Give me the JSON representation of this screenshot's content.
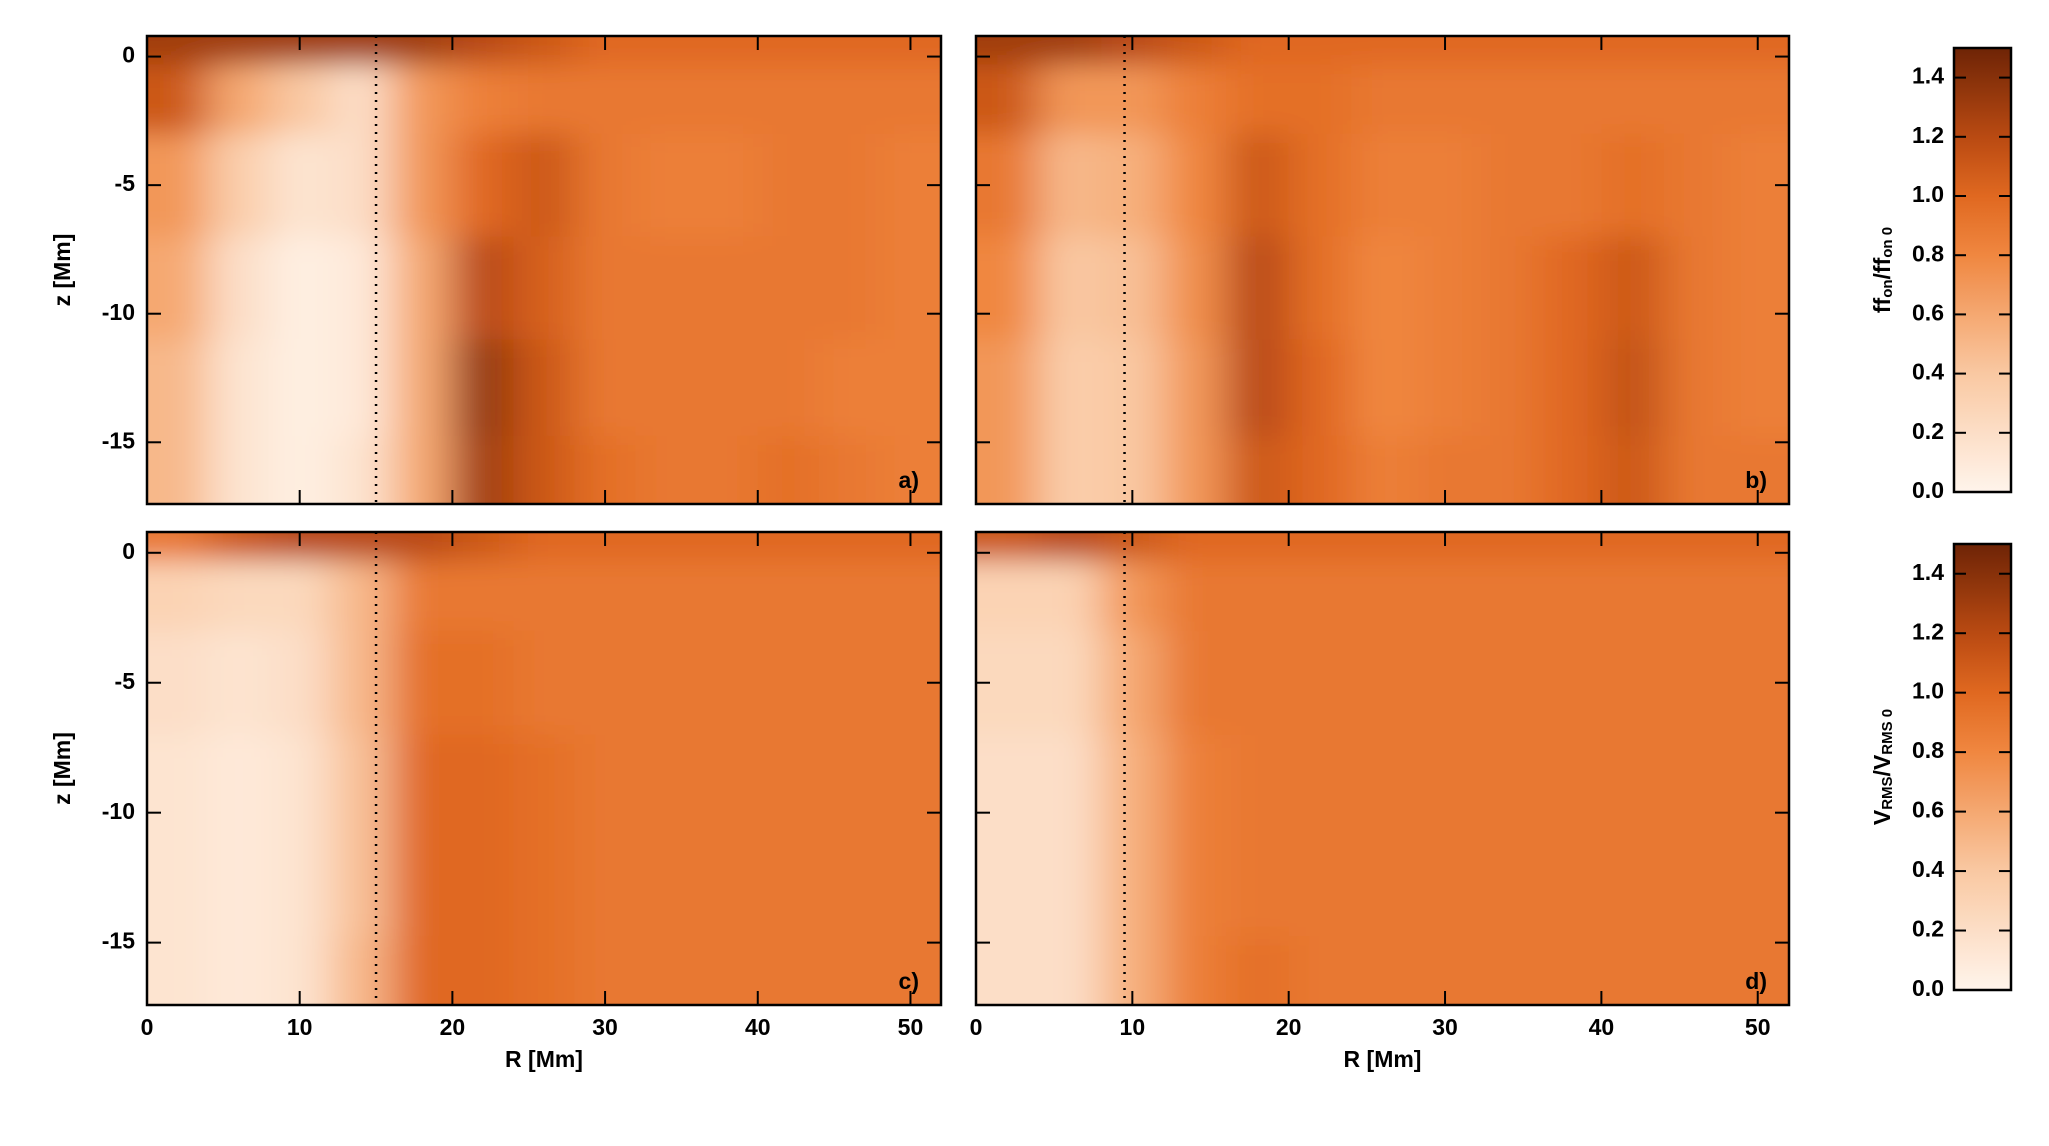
{
  "chart_data": [
    {
      "type": "heatmap",
      "panel_label": "a)",
      "xlim": [
        0,
        52
      ],
      "ylim": [
        -17.4,
        0.8
      ],
      "xticks": [
        0,
        10,
        20,
        30,
        40,
        50
      ],
      "yticks": [
        -15,
        -10,
        -5,
        0
      ],
      "show_xtick_labels": false,
      "show_ytick_labels": true,
      "ylabel": "z [Mm]",
      "marker_x": 15,
      "x": [
        2,
        6,
        10,
        14,
        18,
        22,
        26,
        30,
        34,
        38,
        42,
        46,
        50
      ],
      "y": [
        0.4,
        -1,
        -5,
        -9,
        -13,
        -16.5
      ],
      "z": [
        [
          1.3,
          1.3,
          1.3,
          1.3,
          1.3,
          1.2,
          1.1,
          1.0,
          1.0,
          1.0,
          1.0,
          1.0,
          1.0
        ],
        [
          1.1,
          0.6,
          0.4,
          0.2,
          0.7,
          0.85,
          0.9,
          0.9,
          0.9,
          0.9,
          0.9,
          0.9,
          0.9
        ],
        [
          0.7,
          0.35,
          0.15,
          0.2,
          0.7,
          1.0,
          1.1,
          0.9,
          0.85,
          0.85,
          0.9,
          0.9,
          0.85
        ],
        [
          0.6,
          0.2,
          0.05,
          0.1,
          0.6,
          1.2,
          1.05,
          0.9,
          0.9,
          0.9,
          0.9,
          0.9,
          0.85
        ],
        [
          0.5,
          0.15,
          0.05,
          0.1,
          0.6,
          1.35,
          1.1,
          0.9,
          0.9,
          0.9,
          0.9,
          0.85,
          0.85
        ],
        [
          0.5,
          0.15,
          0.05,
          0.15,
          0.6,
          1.3,
          1.1,
          0.95,
          0.9,
          0.9,
          0.95,
          0.9,
          0.85
        ]
      ]
    },
    {
      "type": "heatmap",
      "panel_label": "b)",
      "xlim": [
        0,
        52
      ],
      "ylim": [
        -17.4,
        0.8
      ],
      "xticks": [
        0,
        10,
        20,
        30,
        40,
        50
      ],
      "yticks": [
        -15,
        -10,
        -5,
        0
      ],
      "show_xtick_labels": false,
      "show_ytick_labels": false,
      "marker_x": 9.5,
      "x": [
        2,
        6,
        10,
        14,
        18,
        22,
        26,
        30,
        34,
        38,
        42,
        46,
        50
      ],
      "y": [
        0.4,
        -1,
        -5,
        -9,
        -13,
        -16.5
      ],
      "z": [
        [
          1.3,
          1.3,
          1.2,
          1.1,
          1.0,
          1.0,
          1.0,
          1.0,
          1.0,
          1.0,
          1.0,
          1.0,
          1.0
        ],
        [
          1.1,
          0.7,
          0.7,
          0.85,
          0.95,
          0.95,
          0.9,
          0.9,
          0.9,
          0.9,
          0.9,
          0.9,
          0.9
        ],
        [
          0.9,
          0.5,
          0.55,
          0.8,
          1.1,
          0.95,
          0.85,
          0.85,
          0.9,
          0.9,
          0.95,
          0.9,
          0.85
        ],
        [
          0.8,
          0.4,
          0.45,
          0.75,
          1.2,
          0.95,
          0.8,
          0.85,
          0.9,
          1.0,
          1.1,
          0.9,
          0.85
        ],
        [
          0.7,
          0.35,
          0.4,
          0.7,
          1.2,
          1.0,
          0.8,
          0.85,
          0.9,
          1.0,
          1.15,
          0.9,
          0.85
        ],
        [
          0.7,
          0.35,
          0.4,
          0.7,
          1.1,
          1.0,
          0.85,
          0.9,
          0.9,
          1.0,
          1.1,
          0.9,
          0.9
        ]
      ]
    },
    {
      "type": "heatmap",
      "panel_label": "c)",
      "xlim": [
        0,
        52
      ],
      "ylim": [
        -17.4,
        0.8
      ],
      "xticks": [
        0,
        10,
        20,
        30,
        40,
        50
      ],
      "yticks": [
        -15,
        -10,
        -5,
        0
      ],
      "show_xtick_labels": true,
      "show_ytick_labels": true,
      "xlabel": "R [Mm]",
      "ylabel": "z [Mm]",
      "marker_x": 15,
      "x": [
        2,
        6,
        10,
        14,
        18,
        22,
        26,
        30,
        34,
        38,
        42,
        46,
        50
      ],
      "y": [
        0.4,
        -1,
        -5,
        -9,
        -13,
        -16.5
      ],
      "z": [
        [
          0.9,
          1.1,
          1.2,
          1.2,
          1.2,
          1.1,
          1.0,
          1.0,
          1.0,
          1.0,
          1.0,
          1.0,
          1.0
        ],
        [
          0.3,
          0.25,
          0.25,
          0.5,
          0.9,
          0.9,
          0.9,
          0.9,
          0.9,
          0.9,
          0.9,
          0.9,
          0.9
        ],
        [
          0.2,
          0.15,
          0.2,
          0.5,
          0.95,
          0.95,
          0.9,
          0.9,
          0.9,
          0.9,
          0.9,
          0.9,
          0.9
        ],
        [
          0.15,
          0.1,
          0.15,
          0.45,
          1.0,
          1.0,
          0.95,
          0.9,
          0.9,
          0.9,
          0.9,
          0.9,
          0.9
        ],
        [
          0.15,
          0.1,
          0.15,
          0.45,
          1.0,
          1.0,
          0.95,
          0.9,
          0.9,
          0.9,
          0.9,
          0.9,
          0.9
        ],
        [
          0.15,
          0.1,
          0.15,
          0.5,
          1.0,
          1.0,
          0.95,
          0.9,
          0.9,
          0.9,
          0.9,
          0.9,
          0.9
        ]
      ]
    },
    {
      "type": "heatmap",
      "panel_label": "d)",
      "xlim": [
        0,
        52
      ],
      "ylim": [
        -17.4,
        0.8
      ],
      "xticks": [
        0,
        10,
        20,
        30,
        40,
        50
      ],
      "yticks": [
        -15,
        -10,
        -5,
        0
      ],
      "show_xtick_labels": true,
      "show_ytick_labels": false,
      "xlabel": "R [Mm]",
      "marker_x": 9.5,
      "x": [
        2,
        6,
        10,
        14,
        18,
        22,
        26,
        30,
        34,
        38,
        42,
        46,
        50
      ],
      "y": [
        0.4,
        -1,
        -5,
        -9,
        -13,
        -16.5
      ],
      "z": [
        [
          1.1,
          1.2,
          1.1,
          1.0,
          1.0,
          1.0,
          1.0,
          1.0,
          1.0,
          1.0,
          1.0,
          1.0,
          1.0
        ],
        [
          0.3,
          0.3,
          0.7,
          0.9,
          0.9,
          0.9,
          0.9,
          0.9,
          0.9,
          0.9,
          0.9,
          0.9,
          0.9
        ],
        [
          0.25,
          0.25,
          0.6,
          0.9,
          0.9,
          0.9,
          0.9,
          0.9,
          0.9,
          0.9,
          0.9,
          0.9,
          0.9
        ],
        [
          0.2,
          0.2,
          0.55,
          0.85,
          0.9,
          0.9,
          0.9,
          0.9,
          0.9,
          0.9,
          0.9,
          0.9,
          0.9
        ],
        [
          0.2,
          0.2,
          0.55,
          0.85,
          0.9,
          0.9,
          0.9,
          0.9,
          0.9,
          0.9,
          0.9,
          0.9,
          0.9
        ],
        [
          0.2,
          0.2,
          0.55,
          0.85,
          0.95,
          0.9,
          0.9,
          0.9,
          0.9,
          0.9,
          0.9,
          0.9,
          0.9
        ]
      ]
    },
    {
      "type": "colorbar",
      "label": [
        "ff",
        "on",
        "/ff",
        "on 0"
      ],
      "clim": [
        0,
        1.5
      ],
      "ticks": [
        {
          "value": 0,
          "label": "0.0"
        },
        {
          "value": 0.2,
          "label": "0.2"
        },
        {
          "value": 0.4,
          "label": "0.4"
        },
        {
          "value": 0.6,
          "label": "0.6"
        },
        {
          "value": 0.8,
          "label": "0.8"
        },
        {
          "value": 1,
          "label": "1.0"
        },
        {
          "value": 1.2,
          "label": "1.2"
        },
        {
          "value": 1.4,
          "label": "1.4"
        }
      ]
    },
    {
      "type": "colorbar",
      "label": [
        "V",
        "RMS",
        "/V",
        "RMS 0"
      ],
      "clim": [
        0,
        1.5
      ],
      "ticks": [
        {
          "value": 0,
          "label": "0.0"
        },
        {
          "value": 0.2,
          "label": "0.2"
        },
        {
          "value": 0.4,
          "label": "0.4"
        },
        {
          "value": 0.6,
          "label": "0.6"
        },
        {
          "value": 0.8,
          "label": "0.8"
        },
        {
          "value": 1,
          "label": "1.0"
        },
        {
          "value": 1.2,
          "label": "1.2"
        },
        {
          "value": 1.4,
          "label": "1.4"
        }
      ]
    }
  ]
}
